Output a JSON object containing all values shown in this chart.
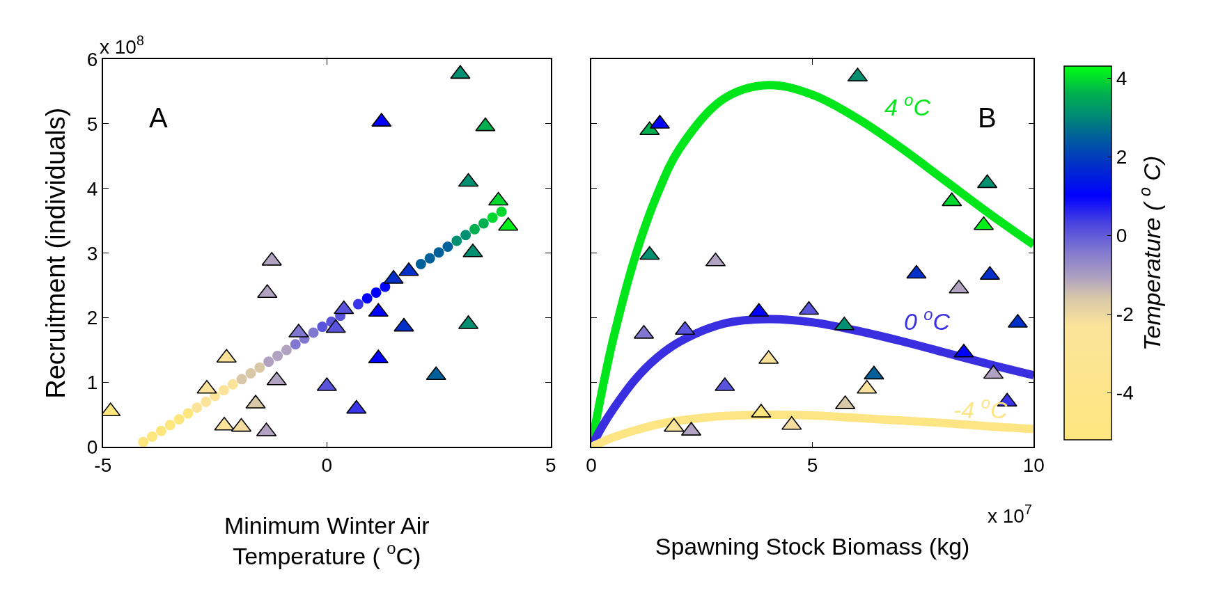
{
  "chart_data": [
    {
      "type": "scatter",
      "xlabel": "Minimum Winter Air\nTemperature ( $^{o}$C)",
      "ylabel": "Recruitment (individuals)",
      "xlim": [
        -5,
        5
      ],
      "xticks": [
        -5,
        0,
        5
      ],
      "ylim": [
        0,
        6
      ],
      "yticks": [
        0,
        1,
        2,
        3,
        4,
        5,
        6
      ],
      "annotations": [
        "A",
        "x 10$^{8}$"
      ],
      "series": [
        {
          "type": "scatter",
          "marker": "circle",
          "x": [
            -4.1,
            -3.9,
            -3.7,
            -3.5,
            -3.3,
            -3.1,
            -2.9,
            -2.7,
            -2.5,
            -2.3,
            -2.1,
            -1.9,
            -1.7,
            -1.5,
            -1.3,
            -1.1,
            -0.9,
            -0.7,
            -0.5,
            -0.3,
            -0.1,
            0.1,
            0.3,
            0.5,
            0.7,
            0.9,
            1.1,
            1.3,
            1.5,
            1.7,
            1.9,
            2.1,
            2.3,
            2.5,
            2.7,
            2.9,
            3.1,
            3.3,
            3.5,
            3.7,
            3.9
          ],
          "values": [
            0.08,
            0.16,
            0.25,
            0.34,
            0.43,
            0.52,
            0.61,
            0.7,
            0.79,
            0.88,
            0.97,
            1.05,
            1.14,
            1.23,
            1.32,
            1.41,
            1.5,
            1.59,
            1.68,
            1.77,
            1.86,
            1.94,
            2.03,
            null,
            2.21,
            2.3,
            2.39,
            2.48,
            null,
            null,
            null,
            2.83,
            2.92,
            3.01,
            3.1,
            3.19,
            3.28,
            3.37,
            3.46,
            3.55,
            3.64
          ],
          "colors": [
            "#fde67e",
            "#fde67e",
            "#fde67e",
            "#fde67e",
            "#fde67e",
            "#fde67e",
            "#fbe49a",
            "#fbe49a",
            "#fbe49a",
            "#fbe49a",
            "#fbe49a",
            "#d8c8a8",
            "#d8c8a8",
            "#d8c8a8",
            "#b0a2c0",
            "#b0a2c0",
            "#b0a2c0",
            "#8078d0",
            "#8078d0",
            "#8078d0",
            "#5a54dc",
            "#5a54dc",
            "#5a54dc",
            "#5a54dc",
            "#3a35e8",
            "#0000ff",
            "#0000ff",
            "#0000ff",
            "#0030c8",
            "#0030c8",
            "#0030c8",
            "#00609a",
            "#00609a",
            "#00609a",
            "#00609a",
            "#008f70",
            "#008f70",
            "#00b050",
            "#00b050",
            "#00d830",
            "#00d830"
          ]
        },
        {
          "type": "scatter",
          "marker": "triangle",
          "x": [
            -4.83,
            -2.68,
            -2.24,
            -2.29,
            -1.91,
            -1.59,
            -1.35,
            -1.23,
            -1.33,
            -1.12,
            -0.63,
            0.0,
            0.2,
            0.38,
            0.66,
            1.15,
            1.15,
            1.22,
            1.49,
            1.72,
            1.83,
            2.44,
            2.98,
            3.16,
            3.54,
            3.83,
            4.05,
            3.26,
            3.16
          ],
          "values": [
            0.55,
            0.9,
            1.38,
            0.33,
            0.31,
            0.67,
            0.24,
            2.88,
            2.38,
            1.03,
            1.77,
            0.94,
            1.84,
            2.13,
            0.59,
            2.09,
            1.37,
            5.03,
            2.6,
            1.86,
            2.72,
            1.11,
            5.77,
            4.1,
            4.96,
            3.81,
            3.42,
            3.01,
            1.9
          ],
          "colors": [
            "#fde67e",
            "#fbe49a",
            "#fbe49a",
            "#fbe49a",
            "#f4dc9e",
            "#d8c8a8",
            "#b0a2c0",
            "#b0a2c0",
            "#b0a2c0",
            "#b0a2c0",
            "#8078d0",
            "#5a54dc",
            "#5a54dc",
            "#5a54dc",
            "#3a35e8",
            "#0000ff",
            "#0000ff",
            "#0000ff",
            "#0030c8",
            "#0030c8",
            "#0030c8",
            "#00609a",
            "#008f70",
            "#008f70",
            "#00b050",
            "#00d830",
            "#00f018",
            "#008f70",
            "#008f70"
          ]
        }
      ]
    },
    {
      "type": "scatter",
      "xlabel": "Spawning Stock Biomass (kg)",
      "clabel": "Temperature ( $^{o}$ C)",
      "xlim": [
        0,
        10
      ],
      "xticks": [
        0,
        5,
        10
      ],
      "ylim": [
        0,
        6
      ],
      "yticks": [
        0,
        1,
        2,
        3,
        4,
        5,
        6
      ],
      "tick_labels": "x",
      "clim": [
        -5.2,
        4.3
      ],
      "cticks": [
        -4,
        -2,
        0,
        2,
        4
      ],
      "annotations": [
        "B",
        "x 10$^{7}$",
        "4 $^{o}$C",
        "0 $^{o}$C",
        "-4 $^{o}$C"
      ],
      "series": [
        {
          "type": "line",
          "color": "#00e61a",
          "x": [
            0,
            0.25,
            0.5,
            1,
            1.5,
            2,
            3,
            4,
            5,
            6,
            7,
            8,
            9,
            10
          ],
          "values": [
            0,
            0.89,
            1.68,
            2.96,
            3.92,
            4.62,
            5.39,
            5.6,
            5.45,
            5.09,
            4.63,
            4.12,
            3.61,
            3.13
          ]
        },
        {
          "type": "line",
          "color": "#3a2fe0",
          "x": [
            0,
            0.25,
            0.5,
            1,
            1.5,
            2,
            3,
            4,
            5,
            6,
            7,
            8,
            9,
            10
          ],
          "values": [
            0,
            0.32,
            0.59,
            1.05,
            1.39,
            1.63,
            1.91,
            1.98,
            1.93,
            1.8,
            1.64,
            1.46,
            1.28,
            1.11
          ]
        },
        {
          "type": "line",
          "color": "#fde583",
          "x": [
            0,
            0.25,
            0.5,
            1,
            1.5,
            2,
            3,
            4,
            5,
            6,
            7,
            8,
            9,
            10
          ],
          "values": [
            0,
            0.08,
            0.15,
            0.26,
            0.35,
            0.41,
            0.48,
            0.5,
            0.49,
            0.45,
            0.41,
            0.37,
            0.32,
            0.28
          ]
        },
        {
          "type": "scatter",
          "marker": "triangle",
          "x": [
            6.02,
            1.32,
            1.55,
            1.32,
            2.81,
            1.19,
            2.12,
            3.79,
            4.92,
            5.72,
            4.01,
            3.02,
            3.84,
            1.87,
            2.26,
            4.53,
            5.74,
            6.23,
            6.39,
            7.35,
            8.95,
            8.15,
            8.87,
            9.01,
            8.31,
            9.64,
            8.42,
            9.09,
            9.4
          ],
          "values": [
            5.73,
            4.9,
            5.0,
            2.97,
            2.87,
            1.75,
            1.81,
            2.09,
            2.12,
            1.88,
            1.36,
            0.94,
            0.53,
            0.31,
            0.25,
            0.34,
            0.66,
            0.9,
            1.12,
            2.68,
            4.08,
            3.8,
            3.43,
            2.66,
            2.45,
            1.92,
            1.46,
            1.13,
            0.7
          ],
          "colors": [
            "#008f70",
            "#00b050",
            "#0000ff",
            "#008f70",
            "#b0a2c0",
            "#8078d0",
            "#5a54dc",
            "#0000ff",
            "#5a54dc",
            "#008f70",
            "#fbe49a",
            "#5a54dc",
            "#fde67e",
            "#fbe49a",
            "#b0a2c0",
            "#f4dc9e",
            "#d8c8a8",
            "#fbe49a",
            "#00609a",
            "#0030c8",
            "#008f70",
            "#00d830",
            "#00f018",
            "#0030c8",
            "#b0a2c0",
            "#0030c8",
            "#0000ff",
            "#b0a2c0",
            "#3a35e8"
          ]
        }
      ]
    }
  ]
}
